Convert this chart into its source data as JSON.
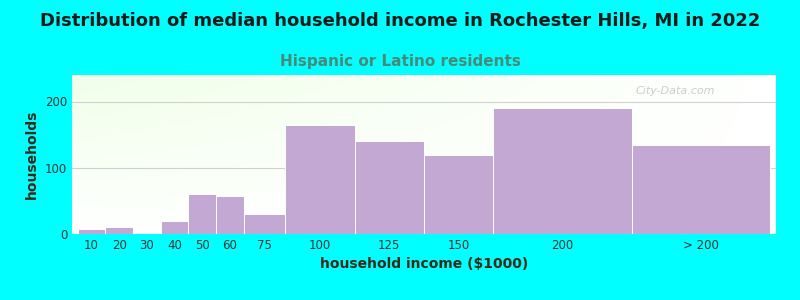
{
  "title": "Distribution of median household income in Rochester Hills, MI in 2022",
  "subtitle": "Hispanic or Latino residents",
  "xlabel": "household income ($1000)",
  "ylabel": "households",
  "background_outer": "#00FFFF",
  "bar_color": "#C4A8D4",
  "bar_edge_color": "#C4A8D4",
  "categories": [
    "10",
    "20",
    "30",
    "40",
    "50",
    "60",
    "75",
    "100",
    "125",
    "150",
    "200",
    "> 200"
  ],
  "values": [
    8,
    10,
    2,
    20,
    60,
    58,
    30,
    165,
    140,
    120,
    190,
    135
  ],
  "ylim": [
    0,
    240
  ],
  "yticks": [
    0,
    100,
    200
  ],
  "title_fontsize": 13,
  "subtitle_fontsize": 11,
  "axis_label_fontsize": 10,
  "tick_fontsize": 8.5,
  "title_color": "#1A1A1A",
  "subtitle_color": "#5A7A6A",
  "axis_label_color": "#3A2A1A",
  "watermark_text": "City-Data.com",
  "left_edges": [
    0,
    10,
    20,
    30,
    40,
    50,
    60,
    75,
    100,
    125,
    150,
    200
  ],
  "widths": [
    10,
    10,
    10,
    10,
    10,
    10,
    15,
    25,
    25,
    25,
    50,
    50
  ]
}
